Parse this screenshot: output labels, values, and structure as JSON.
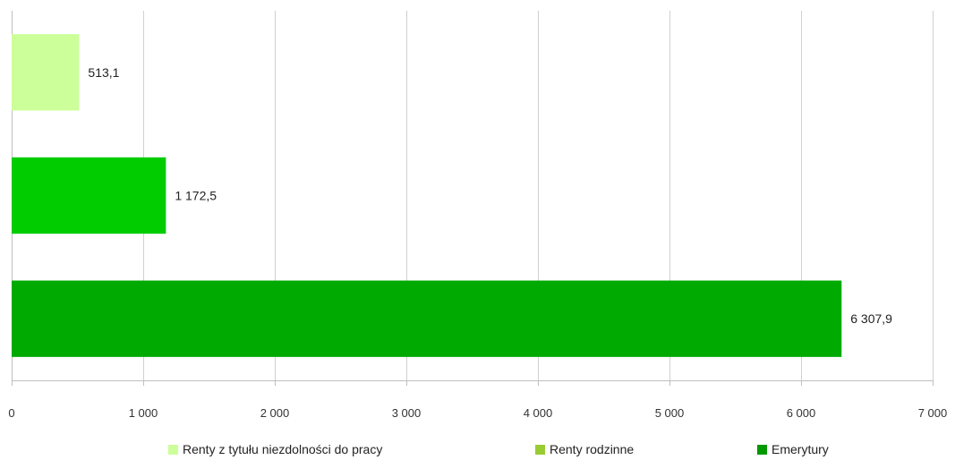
{
  "chart_data": {
    "type": "bar",
    "orientation": "horizontal",
    "categories": [
      "Renty z tytułu niezdolności do pracy",
      "Renty rodzinne",
      "Emerytury"
    ],
    "values": [
      513.1,
      1172.5,
      6307.9
    ],
    "data_labels": [
      "513,1",
      "1 172,5",
      "6 307,9"
    ],
    "colors": [
      "#ccff99",
      "#00cc00",
      "#00aa00"
    ],
    "legend_colors": [
      "#ccff99",
      "#99cc33",
      "#009900"
    ],
    "xlim": [
      0,
      7000
    ],
    "x_ticks": [
      0,
      1000,
      2000,
      3000,
      4000,
      5000,
      6000,
      7000
    ],
    "x_tick_labels": [
      "0",
      "1 000",
      "2 000",
      "3 000",
      "4 000",
      "5 000",
      "6 000",
      "7 000"
    ],
    "grid": true,
    "legend_position": "bottom",
    "title": "",
    "xlabel": "",
    "ylabel": ""
  }
}
